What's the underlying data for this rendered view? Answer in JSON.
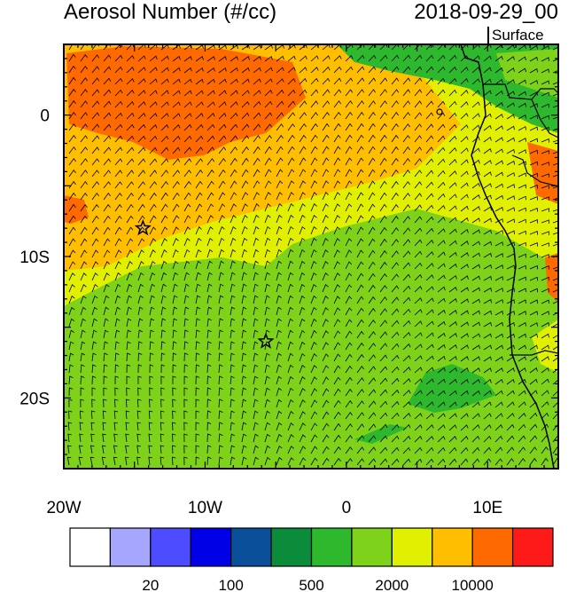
{
  "header": {
    "title": "Aerosol Number (#/cc)",
    "datetime": "2018-09-29_00",
    "level": "Surface"
  },
  "map": {
    "lon_range": [
      -20,
      15
    ],
    "lat_range": [
      -25,
      5
    ],
    "x_ticks": [
      {
        "value": -20,
        "label": "20W"
      },
      {
        "value": -10,
        "label": "10W"
      },
      {
        "value": 0,
        "label": "0"
      },
      {
        "value": 10,
        "label": "10E"
      }
    ],
    "y_ticks": [
      {
        "value": 0,
        "label": "0"
      },
      {
        "value": -10,
        "label": "10S"
      },
      {
        "value": -20,
        "label": "20S"
      }
    ],
    "markers": [
      {
        "name": "star-marker",
        "lon": -14.4,
        "lat": -8.0
      },
      {
        "name": "star-marker",
        "lon": -5.7,
        "lat": -16.0
      }
    ]
  },
  "colorbar": {
    "colors": [
      "#ffffff",
      "#a6a6ff",
      "#4d4dff",
      "#0000e6",
      "#0a4f9a",
      "#0a8c3a",
      "#2eb82e",
      "#7ed21a",
      "#e0f000",
      "#ffbf00",
      "#ff6a00",
      "#ff1a1a"
    ],
    "labels": [
      "20",
      "100",
      "500",
      "2000",
      "10000"
    ]
  }
}
